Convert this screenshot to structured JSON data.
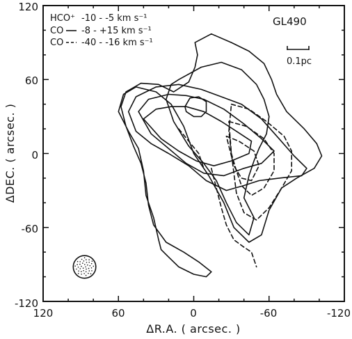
{
  "chart_data": {
    "type": "contour",
    "source_name": "GL490",
    "xlabel": "ΔR.A.  ( arcsec. )",
    "ylabel": "ΔDEC.  ( arcsec. )",
    "xlim": [
      120,
      -120
    ],
    "ylim": [
      -120,
      120
    ],
    "x_ticks": [
      120,
      60,
      0,
      -60,
      -120
    ],
    "x_tick_labels": [
      "120",
      "60",
      "0",
      "-60",
      "-120"
    ],
    "y_ticks": [
      120,
      60,
      0,
      -60,
      -120
    ],
    "y_tick_labels": [
      "120",
      "60",
      "0",
      "-60",
      "-120"
    ],
    "scale_bar_label": "0.1pc",
    "legend": [
      {
        "species": "HCO⁺",
        "line_style": "dotted",
        "velocity_range": "-10 - -5 km s⁻¹"
      },
      {
        "species": "CO",
        "line_style": "solid",
        "velocity_range": "-8 - +15 km s⁻¹"
      },
      {
        "species": "CO",
        "line_style": "dashed",
        "velocity_range": "-40 - -16 km s⁻¹"
      }
    ],
    "beam": {
      "ra": 87,
      "dec": -92,
      "diameter_arcsec": 18
    },
    "series": [
      {
        "style": "solid",
        "contours": [
          [
            [
              -1,
              90
            ],
            [
              -14,
              97
            ],
            [
              -30,
              90
            ],
            [
              -44,
              83
            ],
            [
              -56,
              73
            ],
            [
              -62,
              60
            ],
            [
              -66,
              48
            ],
            [
              -74,
              34
            ],
            [
              -88,
              20
            ],
            [
              -98,
              8
            ],
            [
              -102,
              -2
            ],
            [
              -96,
              -12
            ],
            [
              -82,
              -20
            ],
            [
              -70,
              -28
            ],
            [
              -60,
              -46
            ],
            [
              -54,
              -66
            ],
            [
              -44,
              -72
            ],
            [
              -32,
              -60
            ],
            [
              -24,
              -40
            ],
            [
              -12,
              -18
            ],
            [
              0,
              0
            ],
            [
              8,
              22
            ],
            [
              18,
              40
            ],
            [
              30,
              50
            ],
            [
              46,
              54
            ],
            [
              56,
              48
            ],
            [
              60,
              34
            ],
            [
              52,
              18
            ],
            [
              44,
              4
            ],
            [
              40,
              -14
            ],
            [
              38,
              -34
            ],
            [
              32,
              -52
            ],
            [
              28,
              -70
            ],
            [
              26,
              -78
            ],
            [
              20,
              -84
            ],
            [
              12,
              -92
            ],
            [
              0,
              -98
            ],
            [
              -10,
              -100
            ],
            [
              -14,
              -96
            ],
            [
              -4,
              -88
            ],
            [
              8,
              -80
            ],
            [
              22,
              -72
            ],
            [
              32,
              -58
            ],
            [
              36,
              -42
            ],
            [
              38,
              -24
            ],
            [
              42,
              -8
            ],
            [
              48,
              6
            ],
            [
              54,
              22
            ],
            [
              58,
              38
            ],
            [
              54,
              50
            ],
            [
              42,
              57
            ],
            [
              28,
              56
            ],
            [
              16,
              50
            ],
            [
              4,
              58
            ],
            [
              -1,
              70
            ],
            [
              -3,
              80
            ],
            [
              -1,
              90
            ]
          ],
          [
            [
              52,
              34
            ],
            [
              46,
              46
            ],
            [
              30,
              54
            ],
            [
              12,
              56
            ],
            [
              -6,
              52
            ],
            [
              -22,
              46
            ],
            [
              -38,
              40
            ],
            [
              -54,
              28
            ],
            [
              -68,
              12
            ],
            [
              -80,
              -2
            ],
            [
              -90,
              -12
            ],
            [
              -86,
              -18
            ],
            [
              -68,
              -20
            ],
            [
              -52,
              -22
            ],
            [
              -40,
              -26
            ],
            [
              -26,
              -30
            ],
            [
              -10,
              -22
            ],
            [
              4,
              -10
            ],
            [
              20,
              0
            ],
            [
              34,
              8
            ],
            [
              46,
              18
            ],
            [
              52,
              34
            ]
          ],
          [
            [
              44,
              34
            ],
            [
              36,
              44
            ],
            [
              20,
              48
            ],
            [
              6,
              47
            ],
            [
              -8,
              44
            ],
            [
              -24,
              36
            ],
            [
              -40,
              24
            ],
            [
              -54,
              12
            ],
            [
              -64,
              2
            ],
            [
              -54,
              -8
            ],
            [
              -40,
              -12
            ],
            [
              -24,
              -18
            ],
            [
              -8,
              -16
            ],
            [
              6,
              -8
            ],
            [
              20,
              4
            ],
            [
              34,
              16
            ],
            [
              44,
              34
            ]
          ],
          [
            [
              40,
              28
            ],
            [
              30,
              36
            ],
            [
              18,
              38
            ],
            [
              6,
              38
            ],
            [
              -8,
              34
            ],
            [
              -22,
              26
            ],
            [
              -34,
              18
            ],
            [
              -46,
              10
            ],
            [
              -44,
              0
            ],
            [
              -30,
              -6
            ],
            [
              -16,
              -10
            ],
            [
              -2,
              -6
            ],
            [
              12,
              2
            ],
            [
              26,
              12
            ],
            [
              40,
              28
            ]
          ],
          [
            [
              7,
              38
            ],
            [
              3,
              45
            ],
            [
              -4,
              46
            ],
            [
              -10,
              42
            ],
            [
              -10,
              34
            ],
            [
              -6,
              30
            ],
            [
              0,
              30
            ],
            [
              6,
              34
            ],
            [
              7,
              38
            ]
          ],
          [
            [
              12,
              60
            ],
            [
              -6,
              70
            ],
            [
              -22,
              74
            ],
            [
              -38,
              68
            ],
            [
              -50,
              56
            ],
            [
              -56,
              44
            ],
            [
              -60,
              30
            ],
            [
              -58,
              16
            ],
            [
              -52,
              4
            ],
            [
              -48,
              -6
            ],
            [
              -44,
              -18
            ],
            [
              -40,
              -36
            ],
            [
              -48,
              -52
            ],
            [
              -44,
              -66
            ],
            [
              -34,
              -56
            ],
            [
              -26,
              -40
            ],
            [
              -18,
              -22
            ],
            [
              -8,
              -8
            ],
            [
              4,
              6
            ],
            [
              16,
              26
            ],
            [
              22,
              44
            ],
            [
              18,
              56
            ],
            [
              12,
              60
            ]
          ]
        ]
      },
      {
        "style": "dashed",
        "contours": [
          [
            [
              -30,
              40
            ],
            [
              -44,
              36
            ],
            [
              -58,
              26
            ],
            [
              -72,
              14
            ],
            [
              -78,
              2
            ],
            [
              -78,
              -14
            ],
            [
              -70,
              -28
            ],
            [
              -60,
              -44
            ],
            [
              -50,
              -54
            ],
            [
              -40,
              -48
            ],
            [
              -34,
              -32
            ],
            [
              -32,
              -16
            ],
            [
              -30,
              0
            ],
            [
              -28,
              18
            ],
            [
              -30,
              40
            ]
          ],
          [
            [
              -28,
              26
            ],
            [
              -42,
              22
            ],
            [
              -56,
              12
            ],
            [
              -64,
              0
            ],
            [
              -64,
              -14
            ],
            [
              -56,
              -28
            ],
            [
              -46,
              -34
            ],
            [
              -38,
              -26
            ],
            [
              -34,
              -14
            ],
            [
              -30,
              0
            ],
            [
              -28,
              26
            ]
          ],
          [
            [
              -26,
              14
            ],
            [
              -36,
              10
            ],
            [
              -48,
              2
            ],
            [
              -52,
              -10
            ],
            [
              -46,
              -22
            ],
            [
              -38,
              -20
            ],
            [
              -32,
              -10
            ],
            [
              -26,
              14
            ]
          ],
          [
            [
              -14,
              -12
            ],
            [
              -18,
              -28
            ],
            [
              -22,
              -44
            ],
            [
              -26,
              -58
            ],
            [
              -32,
              -70
            ],
            [
              -40,
              -76
            ],
            [
              -46,
              -80
            ],
            [
              -50,
              -92
            ]
          ],
          [
            [
              12,
              20
            ],
            [
              4,
              10
            ],
            [
              -4,
              0
            ],
            [
              -8,
              -12
            ]
          ]
        ]
      }
    ]
  }
}
